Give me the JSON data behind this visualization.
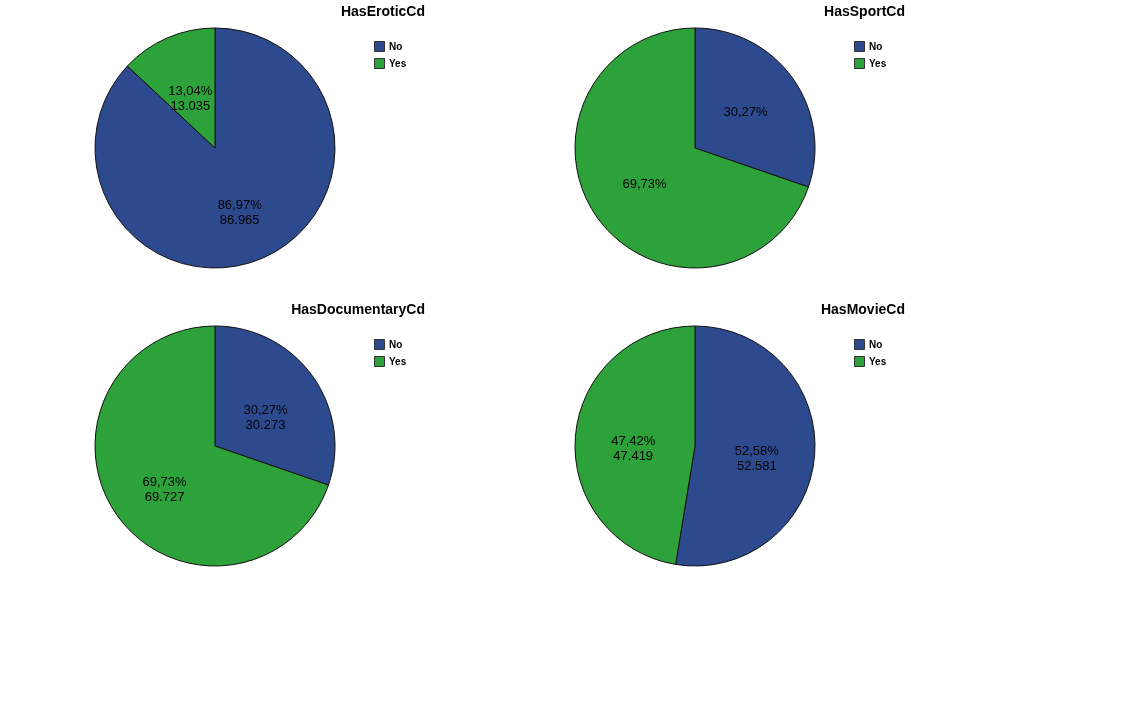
{
  "chart_data": [
    {
      "type": "pie",
      "title": "HasEroticCd",
      "categories": [
        "No",
        "Yes"
      ],
      "values": [
        86.965,
        13.035
      ],
      "colors": [
        "#2e4a8e",
        "#2ea23a"
      ],
      "value_labels": [
        "86,97%\n86.965",
        "13,04%\n13.035"
      ],
      "legend": "top right"
    },
    {
      "type": "pie",
      "title": "HasSportCd",
      "categories": [
        "No",
        "Yes"
      ],
      "values": [
        30.27,
        69.73
      ],
      "colors": [
        "#2e4a8e",
        "#2ea23a"
      ],
      "value_labels": [
        "30,27%",
        "69,73%"
      ],
      "legend": "top right"
    },
    {
      "type": "pie",
      "title": "HasDocumentaryCd",
      "categories": [
        "No",
        "Yes"
      ],
      "values": [
        30.273,
        69.727
      ],
      "colors": [
        "#2e4a8e",
        "#2ea23a"
      ],
      "value_labels": [
        "30,27%\n30.273",
        "69,73%\n69.727"
      ],
      "legend": "top right"
    },
    {
      "type": "pie",
      "title": "HasMovieCd",
      "categories": [
        "No",
        "Yes"
      ],
      "values": [
        52.581,
        47.419
      ],
      "colors": [
        "#2e4a8e",
        "#2ea23a"
      ],
      "value_labels": [
        "52,58%\n52.581",
        "47,42%\n47.419"
      ],
      "legend": "top right"
    }
  ]
}
